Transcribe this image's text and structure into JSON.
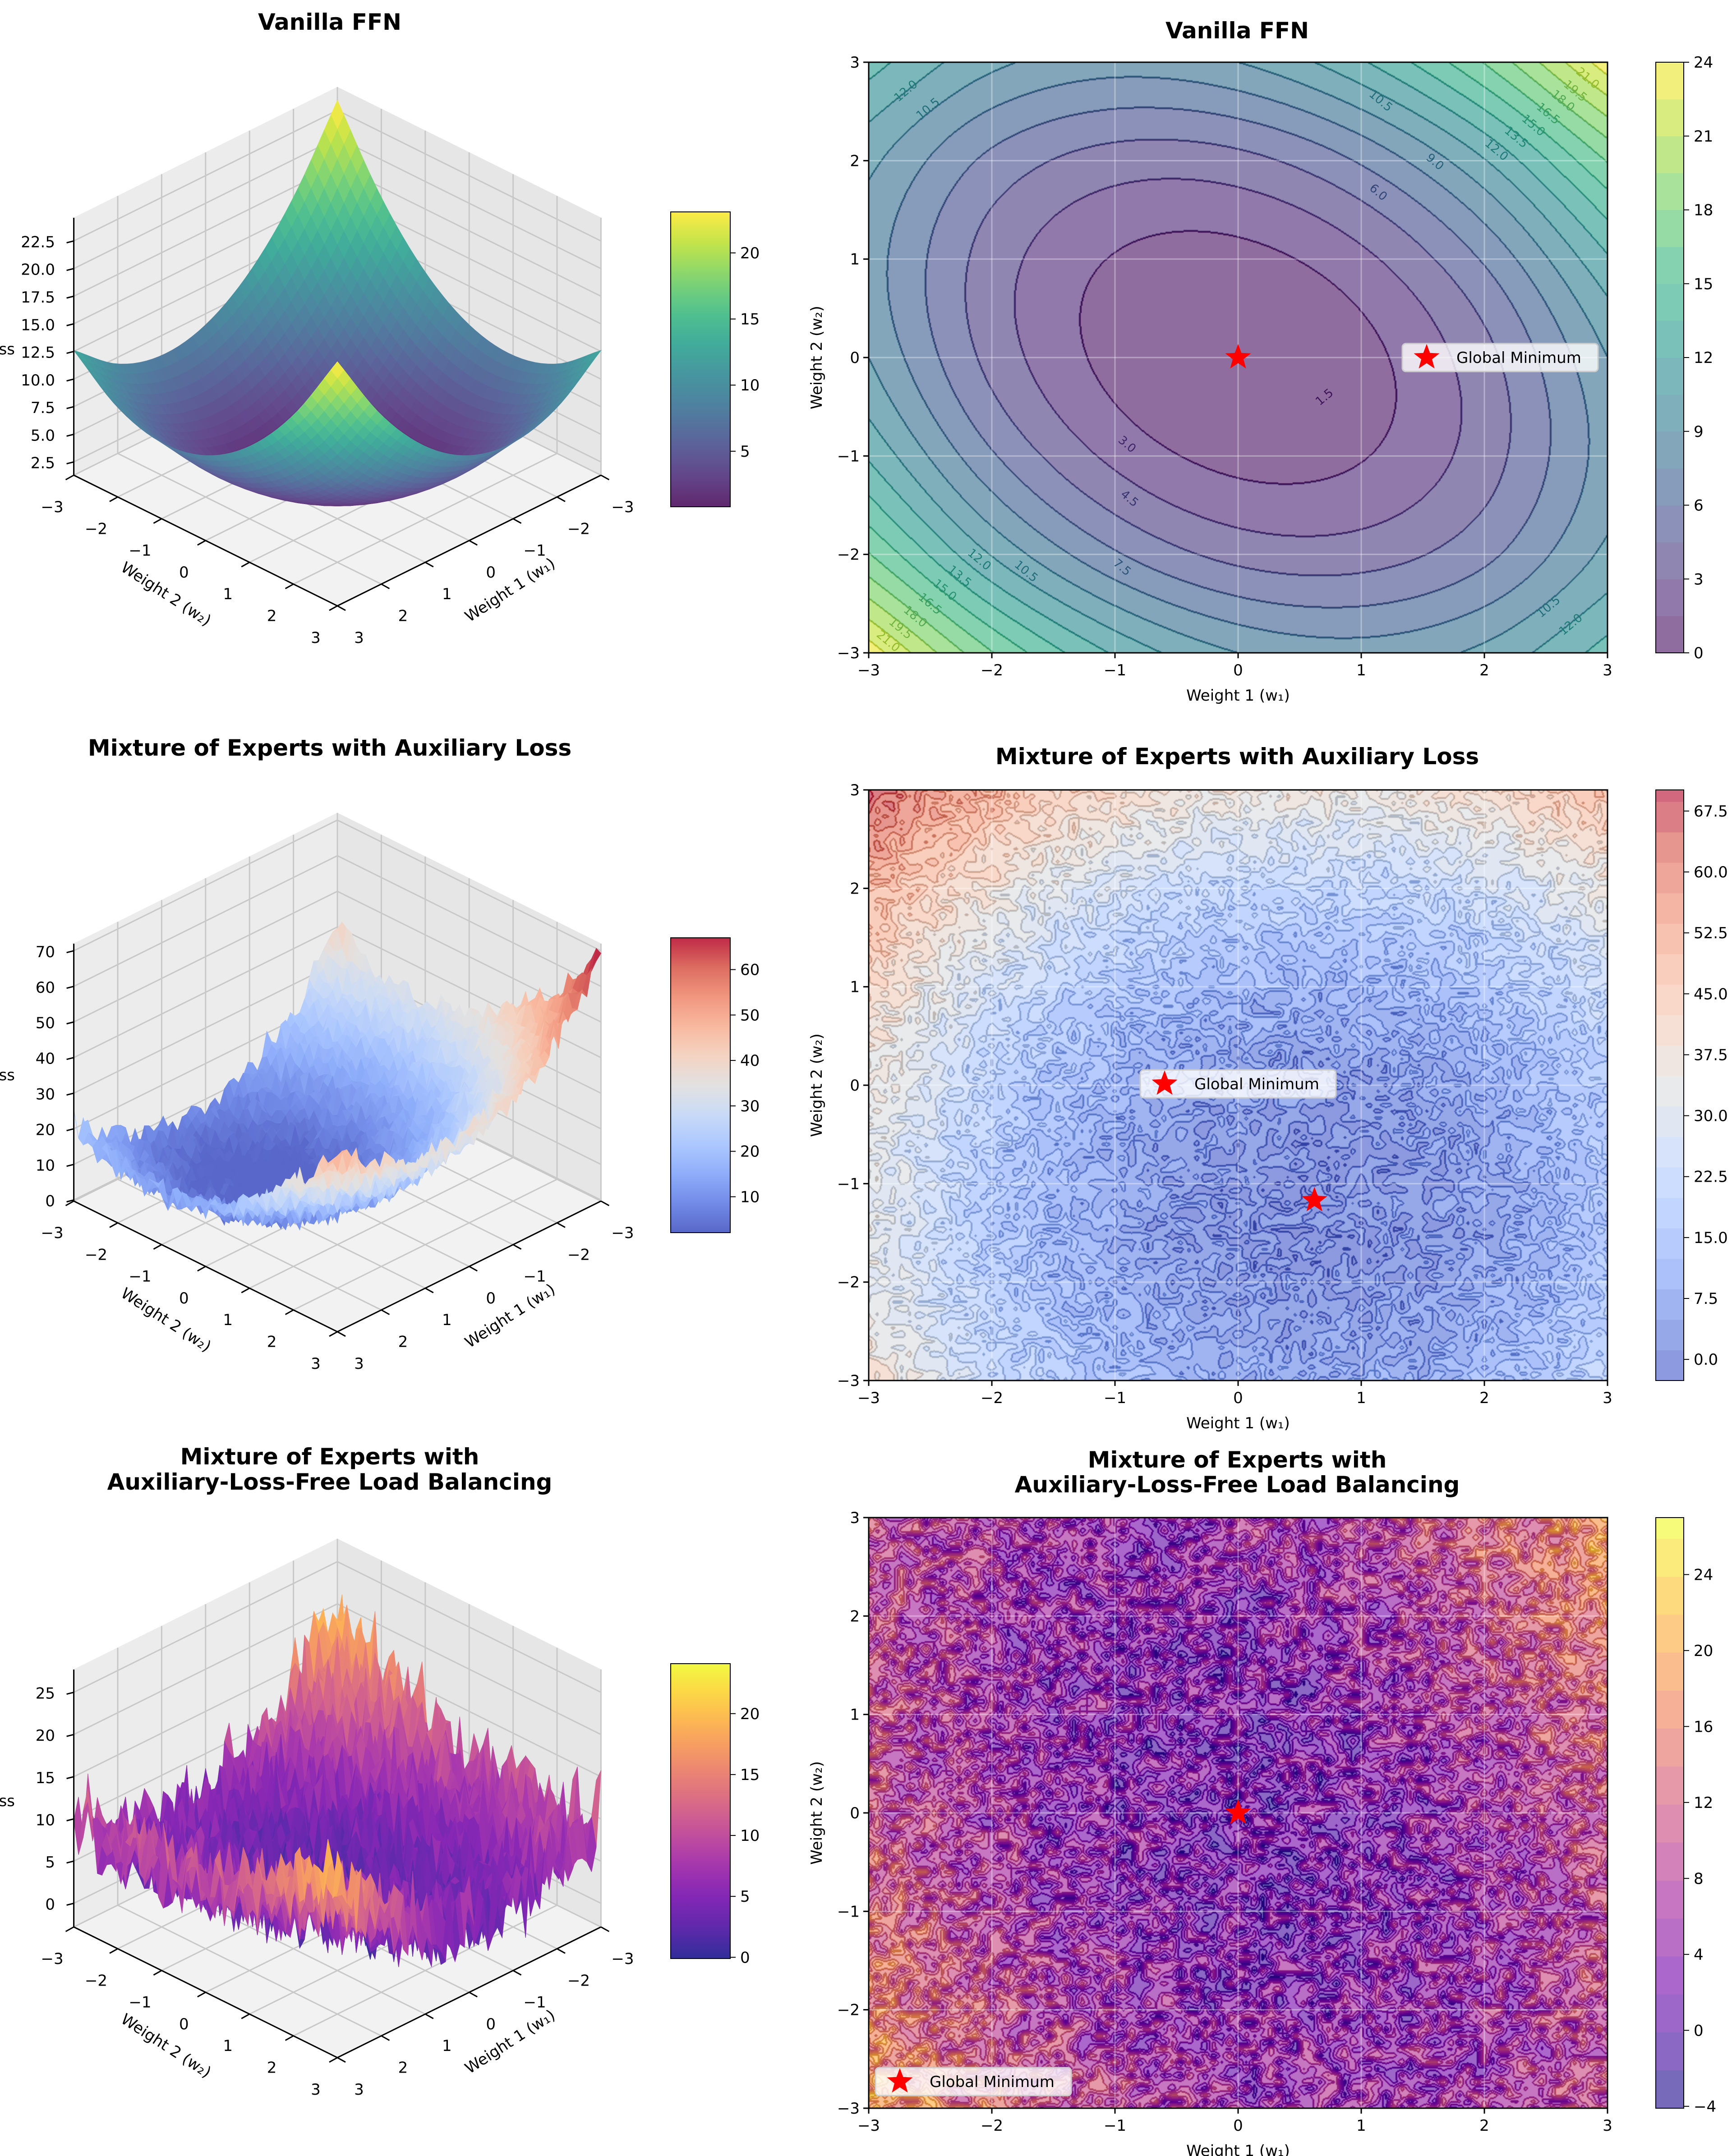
{
  "chart_data": [
    {
      "type": "surface",
      "title": [
        "Vanilla FFN"
      ],
      "xlabel": "Weight 1 (w₁)",
      "ylabel": "Weight 2 (w₂)",
      "zlabel": "Loss",
      "x_ticks": [
        "−3",
        "−2",
        "−1",
        "0",
        "1",
        "2",
        "3"
      ],
      "y_ticks": [
        "−3",
        "−2",
        "−1",
        "0",
        "1",
        "2",
        "3"
      ],
      "z_ticks": [
        "2.5",
        "5.0",
        "7.5",
        "10.0",
        "12.5",
        "15.0",
        "17.5",
        "20.0",
        "22.5"
      ],
      "zlim": [
        1.3,
        24.6
      ],
      "colormap": "viridis",
      "colorbar": {
        "range": [
          0.8,
          23.1
        ],
        "ticks": [
          "5",
          "10",
          "15",
          "20"
        ]
      },
      "noise_amplitude": 0,
      "loss_grid": {
        "w1": [
          -3,
          -2,
          -1,
          0,
          1,
          2,
          3
        ],
        "w2": [
          -3,
          -2,
          -1,
          0,
          1,
          2,
          3
        ],
        "z": [
          [
            23.4,
            16.6,
            11.8,
            9,
            8.2,
            9.4,
            12.6
          ],
          [
            16.6,
            10.4,
            6.2,
            4,
            3.8,
            5.6,
            9.4
          ],
          [
            11.8,
            6.2,
            2.6,
            1,
            1.4,
            3.8,
            8.2
          ],
          [
            9,
            4,
            1,
            0,
            1,
            4,
            9
          ],
          [
            8.2,
            3.8,
            1.4,
            1,
            2.6,
            6.2,
            11.8
          ],
          [
            9.4,
            5.6,
            3.8,
            4,
            6.2,
            10.4,
            16.6
          ],
          [
            12.6,
            9.4,
            8.2,
            9,
            11.8,
            16.6,
            23.4
          ]
        ]
      }
    },
    {
      "type": "contour",
      "title": [
        "Vanilla FFN"
      ],
      "xlabel": "Weight 1 (w₁)",
      "ylabel": "Weight 2 (w₂)",
      "x_ticks": [
        "−3",
        "−2",
        "−1",
        "0",
        "1",
        "2",
        "3"
      ],
      "y_ticks": [
        "−3",
        "−2",
        "−1",
        "0",
        "1",
        "2",
        "3"
      ],
      "xlim": [
        -3,
        3
      ],
      "ylim": [
        -3,
        3
      ],
      "grid": true,
      "colormap": "viridis",
      "contour_interval": 1.5,
      "colorbar": {
        "range": [
          0,
          24
        ],
        "ticks": [
          "0",
          "3",
          "6",
          "9",
          "12",
          "15",
          "18",
          "21",
          "24"
        ]
      },
      "noise_amplitude": 0,
      "minimum": {
        "w1": 0,
        "w2": 0
      },
      "legend": {
        "label": "Global Minimum",
        "position": "center right"
      },
      "contour_labels": [
        {
          "text": "12.0",
          "w1": -2.7,
          "w2": 2.71
        },
        {
          "text": "10.5",
          "w1": -2.52,
          "w2": 2.53
        },
        {
          "text": "10.5",
          "w1": 1.16,
          "w2": 2.61
        },
        {
          "text": "9.0",
          "w1": 1.6,
          "w2": 1.99
        },
        {
          "text": "6.0",
          "w1": 1.14,
          "w2": 1.68
        },
        {
          "text": "12.0",
          "w1": 2.1,
          "w2": 2.11
        },
        {
          "text": "13.5",
          "w1": 2.26,
          "w2": 2.24
        },
        {
          "text": "15.0",
          "w1": 2.4,
          "w2": 2.36
        },
        {
          "text": "16.5",
          "w1": 2.52,
          "w2": 2.48
        },
        {
          "text": "18.0",
          "w1": 2.64,
          "w2": 2.61
        },
        {
          "text": "19.5",
          "w1": 2.74,
          "w2": 2.71
        },
        {
          "text": "21.0",
          "w1": 2.84,
          "w2": 2.84
        },
        {
          "text": "1.5",
          "w1": 0.7,
          "w2": -0.4
        },
        {
          "text": "3.0",
          "w1": -0.9,
          "w2": -0.88
        },
        {
          "text": "4.5",
          "w1": -0.88,
          "w2": -1.43
        },
        {
          "text": "7.5",
          "w1": -0.94,
          "w2": -2.13
        },
        {
          "text": "10.5",
          "w1": -1.72,
          "w2": -2.17
        },
        {
          "text": "12.0",
          "w1": -2.1,
          "w2": -2.05
        },
        {
          "text": "13.5",
          "w1": -2.26,
          "w2": -2.22
        },
        {
          "text": "15.0",
          "w1": -2.38,
          "w2": -2.36
        },
        {
          "text": "16.5",
          "w1": -2.5,
          "w2": -2.5
        },
        {
          "text": "18.0",
          "w1": -2.62,
          "w2": -2.63
        },
        {
          "text": "19.5",
          "w1": -2.74,
          "w2": -2.75
        },
        {
          "text": "21.0",
          "w1": -2.84,
          "w2": -2.88
        },
        {
          "text": "10.5",
          "w1": 2.52,
          "w2": -2.53
        },
        {
          "text": "12.0",
          "w1": 2.7,
          "w2": -2.71
        }
      ],
      "loss_grid": {
        "w1": [
          -3,
          -2,
          -1,
          0,
          1,
          2,
          3
        ],
        "w2": [
          -3,
          -2,
          -1,
          0,
          1,
          2,
          3
        ],
        "z": [
          [
            23.4,
            16.6,
            11.8,
            9,
            8.2,
            9.4,
            12.6
          ],
          [
            16.6,
            10.4,
            6.2,
            4,
            3.8,
            5.6,
            9.4
          ],
          [
            11.8,
            6.2,
            2.6,
            1,
            1.4,
            3.8,
            8.2
          ],
          [
            9,
            4,
            1,
            0,
            1,
            4,
            9
          ],
          [
            8.2,
            3.8,
            1.4,
            1,
            2.6,
            6.2,
            11.8
          ],
          [
            9.4,
            5.6,
            3.8,
            4,
            6.2,
            10.4,
            16.6
          ],
          [
            12.6,
            9.4,
            8.2,
            9,
            11.8,
            16.6,
            23.4
          ]
        ]
      }
    },
    {
      "type": "surface",
      "title": [
        "Mixture of Experts with Auxiliary Loss"
      ],
      "xlabel": "Weight 1 (w₁)",
      "ylabel": "Weight 2 (w₂)",
      "zlabel": "Loss",
      "x_ticks": [
        "−3",
        "−2",
        "−1",
        "0",
        "1",
        "2",
        "3"
      ],
      "y_ticks": [
        "−3",
        "−2",
        "−1",
        "0",
        "1",
        "2",
        "3"
      ],
      "z_ticks": [
        "0",
        "10",
        "20",
        "30",
        "40",
        "50",
        "60",
        "70"
      ],
      "zlim": [
        -0.3,
        72
      ],
      "colormap": "coolwarm",
      "colorbar": {
        "range": [
          2.1,
          67
        ],
        "ticks": [
          "10",
          "20",
          "30",
          "40",
          "50",
          "60"
        ]
      },
      "noise_amplitude": 5,
      "loss_grid": {
        "w1": [
          -3,
          -2,
          -1,
          0,
          1,
          2,
          3
        ],
        "w2": [
          -3,
          -2,
          -1,
          0,
          1,
          2,
          3
        ],
        "z": [
          [
            38.9,
            23.4,
            12.9,
            7.4,
            6.9,
            11.4,
            20.9
          ],
          [
            33.7,
            18.2,
            7.7,
            2.2,
            1.7,
            6.2,
            15.7
          ],
          [
            32.5,
            17.0,
            6.5,
            1.0,
            0.5,
            5.0,
            14.5
          ],
          [
            35.3,
            19.8,
            9.3,
            3.8,
            3.3,
            7.8,
            17.3
          ],
          [
            42.1,
            26.6,
            16.1,
            10.6,
            10.1,
            14.6,
            24.1
          ],
          [
            52.9,
            37.4,
            26.9,
            21.4,
            20.9,
            25.4,
            34.9
          ],
          [
            67.7,
            52.2,
            41.7,
            36.2,
            35.7,
            40.2,
            49.7
          ]
        ]
      }
    },
    {
      "type": "contour",
      "title": [
        "Mixture of Experts with Auxiliary Loss"
      ],
      "xlabel": "Weight 1 (w₁)",
      "ylabel": "Weight 2 (w₂)",
      "x_ticks": [
        "−3",
        "−2",
        "−1",
        "0",
        "1",
        "2",
        "3"
      ],
      "y_ticks": [
        "−3",
        "−2",
        "−1",
        "0",
        "1",
        "2",
        "3"
      ],
      "xlim": [
        -3,
        3
      ],
      "ylim": [
        -3,
        3
      ],
      "grid": true,
      "colormap": "coolwarm",
      "contour_interval": 3.75,
      "colorbar": {
        "range": [
          -2.6,
          70.1
        ],
        "ticks": [
          "0.0",
          "7.5",
          "15.0",
          "22.5",
          "30.0",
          "37.5",
          "45.0",
          "52.5",
          "60.0",
          "67.5"
        ]
      },
      "noise_amplitude": 5,
      "minimum": {
        "w1": 0.62,
        "w2": -1.17
      },
      "legend": {
        "label": "Global Minimum",
        "position": "center"
      },
      "contour_labels": [],
      "loss_grid": {
        "w1": [
          -3,
          -2,
          -1,
          0,
          1,
          2,
          3
        ],
        "w2": [
          -3,
          -2,
          -1,
          0,
          1,
          2,
          3
        ],
        "z": [
          [
            38.9,
            23.4,
            12.9,
            7.4,
            6.9,
            11.4,
            20.9
          ],
          [
            33.7,
            18.2,
            7.7,
            2.2,
            1.7,
            6.2,
            15.7
          ],
          [
            32.5,
            17.0,
            6.5,
            1.0,
            0.5,
            5.0,
            14.5
          ],
          [
            35.3,
            19.8,
            9.3,
            3.8,
            3.3,
            7.8,
            17.3
          ],
          [
            42.1,
            26.6,
            16.1,
            10.6,
            10.1,
            14.6,
            24.1
          ],
          [
            52.9,
            37.4,
            26.9,
            21.4,
            20.9,
            25.4,
            34.9
          ],
          [
            67.7,
            52.2,
            41.7,
            36.2,
            35.7,
            40.2,
            49.7
          ]
        ]
      }
    },
    {
      "type": "surface",
      "title": [
        "Mixture of Experts with",
        "Auxiliary-Loss-Free Load Balancing"
      ],
      "xlabel": "Weight 1 (w₁)",
      "ylabel": "Weight 2 (w₂)",
      "zlabel": "Loss",
      "x_ticks": [
        "−3",
        "−2",
        "−1",
        "0",
        "1",
        "2",
        "3"
      ],
      "y_ticks": [
        "−3",
        "−2",
        "−1",
        "0",
        "1",
        "2",
        "3"
      ],
      "z_ticks": [
        "0",
        "5",
        "10",
        "15",
        "20",
        "25"
      ],
      "zlim": [
        -2.8,
        27.7
      ],
      "colormap": "plasma",
      "colorbar": {
        "range": [
          -0.1,
          24.1
        ],
        "ticks": [
          "0",
          "5",
          "10",
          "15",
          "20"
        ]
      },
      "noise_amplitude": 6,
      "loss_grid": {
        "w1": [
          -3,
          -2,
          -1,
          0,
          1,
          2,
          3
        ],
        "w2": [
          -3,
          -2,
          -1,
          0,
          1,
          2,
          3
        ],
        "z": [
          [
            19.1,
            12.6,
            8.1,
            5.6,
            5.1,
            6.6,
            10.1
          ],
          [
            15.6,
            9.6,
            5.6,
            3.6,
            3.6,
            5.6,
            9.6
          ],
          [
            12.9,
            7.4,
            3.9,
            2.4,
            2.9,
            5.4,
            9.9
          ],
          [
            11,
            6,
            3,
            2,
            3,
            6,
            11
          ],
          [
            9.9,
            5.4,
            2.9,
            2.4,
            3.9,
            7.4,
            12.9
          ],
          [
            9.6,
            5.6,
            3.6,
            3.6,
            5.6,
            9.6,
            15.6
          ],
          [
            10.1,
            6.6,
            5.1,
            5.6,
            8.1,
            12.6,
            19.1
          ]
        ]
      }
    },
    {
      "type": "contour",
      "title": [
        "Mixture of Experts with",
        "Auxiliary-Loss-Free Load Balancing"
      ],
      "xlabel": "Weight 1 (w₁)",
      "ylabel": "Weight 2 (w₂)",
      "x_ticks": [
        "−3",
        "−2",
        "−1",
        "0",
        "1",
        "2",
        "3"
      ],
      "y_ticks": [
        "−3",
        "−2",
        "−1",
        "0",
        "1",
        "2",
        "3"
      ],
      "xlim": [
        -3,
        3
      ],
      "ylim": [
        -3,
        3
      ],
      "grid": true,
      "colormap": "plasma",
      "contour_interval": 2,
      "colorbar": {
        "range": [
          -4.1,
          27
        ],
        "ticks": [
          "−4",
          "0",
          "4",
          "8",
          "12",
          "16",
          "20",
          "24"
        ]
      },
      "noise_amplitude": 6,
      "minimum": {
        "w1": 0,
        "w2": 0
      },
      "legend": {
        "label": "Global Minimum",
        "position": "lower left"
      },
      "contour_labels": [],
      "loss_grid": {
        "w1": [
          -3,
          -2,
          -1,
          0,
          1,
          2,
          3
        ],
        "w2": [
          -3,
          -2,
          -1,
          0,
          1,
          2,
          3
        ],
        "z": [
          [
            19.1,
            12.6,
            8.1,
            5.6,
            5.1,
            6.6,
            10.1
          ],
          [
            15.6,
            9.6,
            5.6,
            3.6,
            3.6,
            5.6,
            9.6
          ],
          [
            12.9,
            7.4,
            3.9,
            2.4,
            2.9,
            5.4,
            9.9
          ],
          [
            11,
            6,
            3,
            2,
            3,
            6,
            11
          ],
          [
            9.9,
            5.4,
            2.9,
            2.4,
            3.9,
            7.4,
            12.9
          ],
          [
            9.6,
            5.6,
            3.6,
            3.6,
            5.6,
            9.6,
            15.6
          ],
          [
            10.1,
            6.6,
            5.1,
            5.6,
            8.1,
            12.6,
            19.1
          ]
        ]
      }
    }
  ]
}
